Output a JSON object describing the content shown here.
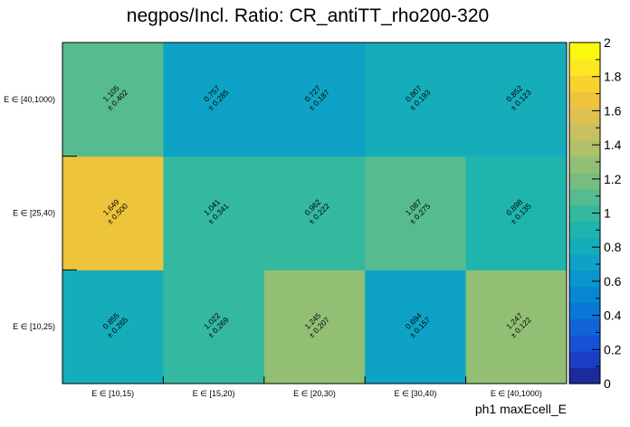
{
  "chart_data": {
    "type": "heatmap",
    "title": "negpos/Incl. Ratio: CR_antiTT_rho200-320",
    "xlabel": "ph1 maxEcell_E",
    "ylabel": "",
    "x_categories": [
      "E ∈ [10,15)",
      "E ∈ [15,20)",
      "E ∈ [20,30)",
      "E ∈ [30,40)",
      "E ∈ [40,1000)"
    ],
    "y_categories": [
      "E ∈ [10,25)",
      "E ∈ [25,40)",
      "E ∈ [40,1000)"
    ],
    "cells": [
      {
        "x": "E ∈ [10,15)",
        "y": "E ∈ [10,25)",
        "value": "0.855",
        "error": "± 0.265"
      },
      {
        "x": "E ∈ [15,20)",
        "y": "E ∈ [10,25)",
        "value": "1.022",
        "error": "± 0.269"
      },
      {
        "x": "E ∈ [20,30)",
        "y": "E ∈ [10,25)",
        "value": "1.245",
        "error": "± 0.207"
      },
      {
        "x": "E ∈ [30,40)",
        "y": "E ∈ [10,25)",
        "value": "0.694",
        "error": "± 0.157"
      },
      {
        "x": "E ∈ [40,1000)",
        "y": "E ∈ [10,25)",
        "value": "1.247",
        "error": "± 0.122"
      },
      {
        "x": "E ∈ [10,15)",
        "y": "E ∈ [25,40)",
        "value": "1.649",
        "error": "± 0.500"
      },
      {
        "x": "E ∈ [15,20)",
        "y": "E ∈ [25,40)",
        "value": "1.041",
        "error": "± 0.341"
      },
      {
        "x": "E ∈ [20,30)",
        "y": "E ∈ [25,40)",
        "value": "0.962",
        "error": "± 0.222"
      },
      {
        "x": "E ∈ [30,40)",
        "y": "E ∈ [25,40)",
        "value": "1.087",
        "error": "± 0.275"
      },
      {
        "x": "E ∈ [40,1000)",
        "y": "E ∈ [25,40)",
        "value": "0.898",
        "error": "± 0.135"
      },
      {
        "x": "E ∈ [10,15)",
        "y": "E ∈ [40,1000)",
        "value": "1.105",
        "error": "± 0.402"
      },
      {
        "x": "E ∈ [15,20)",
        "y": "E ∈ [40,1000)",
        "value": "0.757",
        "error": "± 0.285"
      },
      {
        "x": "E ∈ [20,30)",
        "y": "E ∈ [40,1000)",
        "value": "0.727",
        "error": "± 0.187"
      },
      {
        "x": "E ∈ [30,40)",
        "y": "E ∈ [40,1000)",
        "value": "0.807",
        "error": "± 0.193"
      },
      {
        "x": "E ∈ [40,1000)",
        "y": "E ∈ [40,1000)",
        "value": "0.852",
        "error": "± 0.123"
      }
    ],
    "zlim": [
      0,
      2
    ],
    "colorbar_ticks": [
      "0",
      "0.2",
      "0.4",
      "0.6",
      "0.8",
      "1",
      "1.2",
      "1.4",
      "1.6",
      "1.8",
      "2"
    ],
    "palette": [
      "#1b2a9c",
      "#1a3fc4",
      "#1652d6",
      "#1163d8",
      "#0a76d6",
      "#0787d0",
      "#0896cc",
      "#0ea3c6",
      "#16adbb",
      "#1fb4ad",
      "#34b89f",
      "#56bb90",
      "#78bd80",
      "#93bf74",
      "#b0c16a",
      "#c8c160",
      "#ddc24f",
      "#eec43c",
      "#f8d22e",
      "#fbe722",
      "#f9f90e"
    ],
    "grid": false,
    "legend": "colorbar-right"
  }
}
